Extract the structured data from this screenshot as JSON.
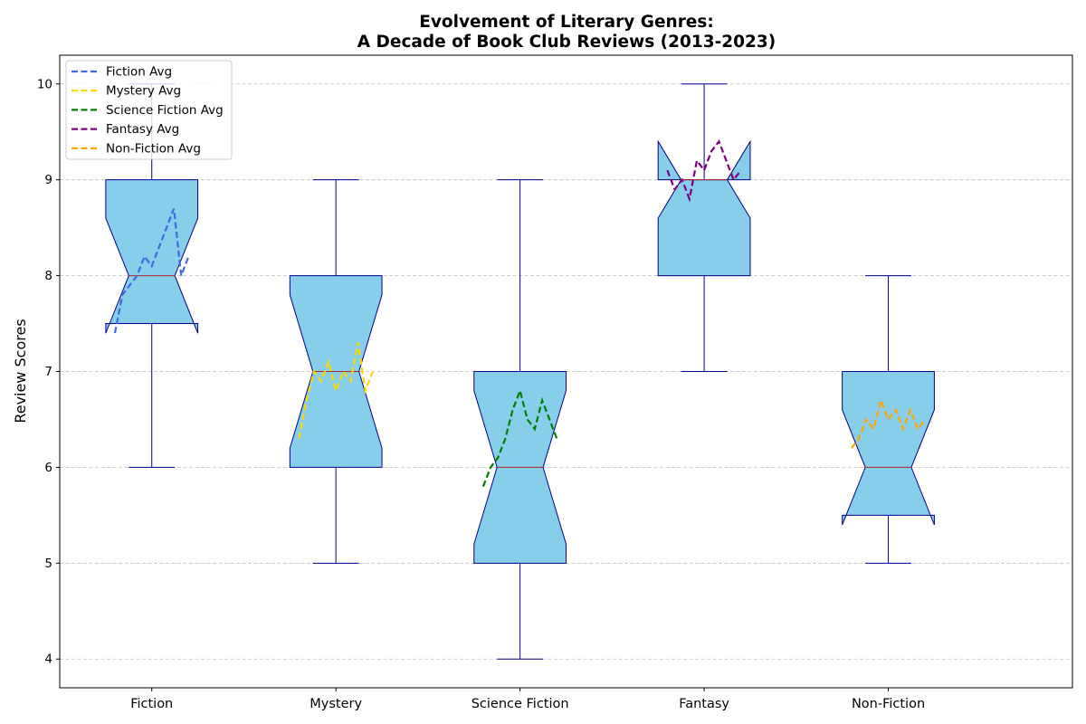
{
  "chart_data": {
    "type": "box",
    "title_lines": [
      "Evolvement of Literary Genres:",
      "A Decade of Book Club Reviews (2013-2023)"
    ],
    "xlabel": "",
    "ylabel": "Review Scores",
    "ylim": [
      3.7,
      10.3
    ],
    "yticks": [
      4,
      5,
      6,
      7,
      8,
      9,
      10
    ],
    "grid": "horizontal dashed",
    "legend_position": "top-left",
    "box_fill": "#87CEEB",
    "box_edge": "#00008B",
    "median_color": "#B22222",
    "categories": [
      "Fiction",
      "Mystery",
      "Science Fiction",
      "Fantasy",
      "Non-Fiction"
    ],
    "boxes": [
      {
        "name": "Fiction",
        "whisker_low": 6,
        "q1": 7.5,
        "median": 8,
        "q3": 9,
        "whisker_high": 10,
        "notch_low": 7.4,
        "notch_high": 8.6
      },
      {
        "name": "Mystery",
        "whisker_low": 5,
        "q1": 6,
        "median": 7,
        "q3": 8,
        "whisker_high": 9,
        "notch_low": 6.2,
        "notch_high": 7.8
      },
      {
        "name": "Science Fiction",
        "whisker_low": 4,
        "q1": 5,
        "median": 6,
        "q3": 7,
        "whisker_high": 9,
        "notch_low": 5.2,
        "notch_high": 6.8
      },
      {
        "name": "Fantasy",
        "whisker_low": 7,
        "q1": 8,
        "median": 9,
        "q3": 9,
        "whisker_high": 10,
        "notch_low": 8.6,
        "notch_high": 9.4
      },
      {
        "name": "Non-Fiction",
        "whisker_low": 5,
        "q1": 5.5,
        "median": 6,
        "q3": 7,
        "whisker_high": 8,
        "notch_low": 5.4,
        "notch_high": 6.6
      }
    ],
    "series": [
      {
        "name": "Fiction Avg",
        "color": "#4169E1",
        "values": [
          7.4,
          7.8,
          7.9,
          8.0,
          8.2,
          8.1,
          8.3,
          8.5,
          8.7,
          8.0,
          8.2
        ]
      },
      {
        "name": "Mystery Avg",
        "color": "#FFD700",
        "values": [
          6.3,
          6.7,
          7.0,
          6.9,
          7.1,
          6.8,
          7.0,
          6.9,
          7.3,
          6.8,
          7.0
        ]
      },
      {
        "name": "Science Fiction Avg",
        "color": "#008000",
        "values": [
          5.8,
          6.0,
          6.1,
          6.3,
          6.6,
          6.8,
          6.5,
          6.4,
          6.7,
          6.5,
          6.3
        ]
      },
      {
        "name": "Fantasy Avg",
        "color": "#800080",
        "values": [
          9.1,
          8.9,
          9.0,
          8.8,
          9.2,
          9.1,
          9.3,
          9.4,
          9.2,
          9.0,
          9.1
        ]
      },
      {
        "name": "Non-Fiction Avg",
        "color": "#FFA500",
        "values": [
          6.2,
          6.3,
          6.5,
          6.4,
          6.7,
          6.5,
          6.6,
          6.4,
          6.6,
          6.4,
          6.5
        ]
      }
    ]
  }
}
